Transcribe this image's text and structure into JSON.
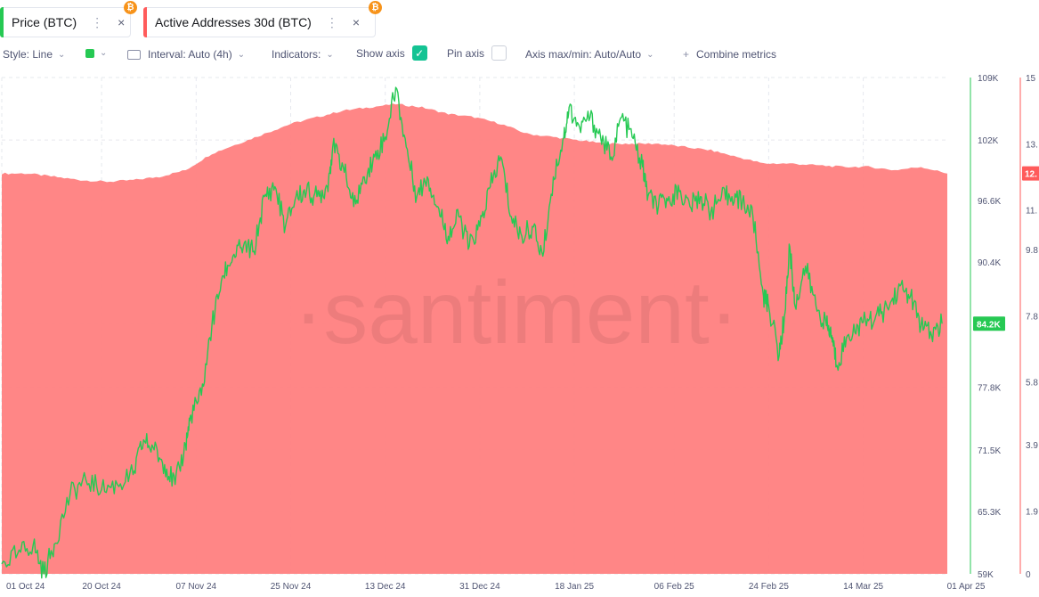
{
  "tabs": [
    {
      "label": "Price (BTC)",
      "dots": "⋮",
      "close": "×",
      "color": "#26c953",
      "badge": "₿",
      "badge_color": "#f7931a"
    },
    {
      "label": "Active Addresses 30d (BTC)",
      "dots": "⋮",
      "close": "×",
      "color": "#ff5b5b",
      "badge": "₿",
      "badge_color": "#f7931a"
    }
  ],
  "toolbar": {
    "style": "Style: Line",
    "color_swatch": "#26c953",
    "interval": "Interval: Auto (4h)",
    "indicators": "Indicators:",
    "show_axis": "Show axis",
    "show_axis_checked": true,
    "pin_axis": "Pin axis",
    "pin_axis_checked": false,
    "axis_maxmin": "Axis max/min: Auto/Auto",
    "combine": "Combine metrics",
    "combine_icon": "+",
    "checkbox_color": "#14c393"
  },
  "watermark": "·santiment·",
  "chart_data": {
    "type": "line",
    "x_ticks": [
      "01 Oct 24",
      "20 Oct 24",
      "07 Nov 24",
      "25 Nov 24",
      "13 Dec 24",
      "31 Dec 24",
      "18 Jan 25",
      "06 Feb 25",
      "24 Feb 25",
      "14 Mar 25",
      "01 Apr 25"
    ],
    "x_tick_days": [
      0,
      19,
      37,
      55,
      73,
      91,
      109,
      128,
      146,
      164,
      182
    ],
    "xlim_days": [
      0,
      180
    ],
    "y_left": {
      "ticks": [
        "109K",
        "102K",
        "96.6K",
        "90.4K",
        "84.2K",
        "77.8K",
        "71.5K",
        "65.3K",
        "59K"
      ],
      "values": [
        109000,
        102700,
        96600,
        90400,
        84200,
        77800,
        71500,
        65300,
        59000
      ],
      "ylim": [
        59000,
        109000
      ],
      "current_label": "84.2K",
      "color": "#26c953"
    },
    "y_right": {
      "ticks": [
        "15",
        "13.",
        "11.",
        "9.8",
        "7.8",
        "5.8",
        "3.9",
        "1.9",
        "0"
      ],
      "values": [
        15,
        13,
        11,
        9.8,
        7.8,
        5.8,
        3.9,
        1.9,
        0
      ],
      "ylim": [
        0,
        15
      ],
      "current_label": "12.",
      "color": "#ff5b5b"
    },
    "series": [
      {
        "name": "Price (BTC)",
        "axis": "left",
        "color": "#26c953",
        "points": [
          [
            0,
            60000
          ],
          [
            3,
            61000
          ],
          [
            6,
            62000
          ],
          [
            8,
            59000
          ],
          [
            10,
            62000
          ],
          [
            13,
            67000
          ],
          [
            16,
            68500
          ],
          [
            19,
            67500
          ],
          [
            22,
            68000
          ],
          [
            25,
            69000
          ],
          [
            27,
            72500
          ],
          [
            29,
            71500
          ],
          [
            31,
            70000
          ],
          [
            33,
            68000
          ],
          [
            35,
            72000
          ],
          [
            36,
            75000
          ],
          [
            38,
            77000
          ],
          [
            40,
            84000
          ],
          [
            42,
            89000
          ],
          [
            44,
            91000
          ],
          [
            46,
            92000
          ],
          [
            48,
            91500
          ],
          [
            50,
            97000
          ],
          [
            52,
            98000
          ],
          [
            54,
            94000
          ],
          [
            56,
            97000
          ],
          [
            58,
            97500
          ],
          [
            60,
            97000
          ],
          [
            62,
            98000
          ],
          [
            63,
            102000
          ],
          [
            65,
            100000
          ],
          [
            67,
            96000
          ],
          [
            69,
            99000
          ],
          [
            71,
            101000
          ],
          [
            73,
            103000
          ],
          [
            75,
            108000
          ],
          [
            77,
            102000
          ],
          [
            79,
            97000
          ],
          [
            81,
            99000
          ],
          [
            83,
            96000
          ],
          [
            85,
            93000
          ],
          [
            87,
            95000
          ],
          [
            89,
            92000
          ],
          [
            91,
            94000
          ],
          [
            93,
            98000
          ],
          [
            95,
            101000
          ],
          [
            97,
            95000
          ],
          [
            99,
            93000
          ],
          [
            101,
            94000
          ],
          [
            103,
            91000
          ],
          [
            105,
            99000
          ],
          [
            107,
            103000
          ],
          [
            108,
            106000
          ],
          [
            110,
            104000
          ],
          [
            112,
            105000
          ],
          [
            114,
            103000
          ],
          [
            116,
            101000
          ],
          [
            118,
            105000
          ],
          [
            120,
            103000
          ],
          [
            122,
            100000
          ],
          [
            123,
            97000
          ],
          [
            125,
            96000
          ],
          [
            127,
            97000
          ],
          [
            129,
            97500
          ],
          [
            131,
            96000
          ],
          [
            133,
            97000
          ],
          [
            135,
            95500
          ],
          [
            137,
            97000
          ],
          [
            139,
            97000
          ],
          [
            141,
            96500
          ],
          [
            143,
            95000
          ],
          [
            145,
            87000
          ],
          [
            146,
            86000
          ],
          [
            148,
            81000
          ],
          [
            149,
            85000
          ],
          [
            150,
            92000
          ],
          [
            151,
            86000
          ],
          [
            153,
            90000
          ],
          [
            155,
            86000
          ],
          [
            157,
            84000
          ],
          [
            158,
            83000
          ],
          [
            159,
            80000
          ],
          [
            161,
            83000
          ],
          [
            163,
            84000
          ],
          [
            165,
            84500
          ],
          [
            167,
            85000
          ],
          [
            169,
            86000
          ],
          [
            171,
            88000
          ],
          [
            173,
            87000
          ],
          [
            175,
            84000
          ],
          [
            177,
            83000
          ],
          [
            179,
            84200
          ]
        ]
      },
      {
        "name": "Active Addresses 30d (BTC)",
        "axis": "right",
        "color": "#ff5b5b",
        "points": [
          [
            0,
            12.1
          ],
          [
            5,
            12.1
          ],
          [
            10,
            12.0
          ],
          [
            15,
            11.9
          ],
          [
            20,
            11.85
          ],
          [
            25,
            11.9
          ],
          [
            30,
            12.0
          ],
          [
            35,
            12.2
          ],
          [
            40,
            12.7
          ],
          [
            45,
            13.0
          ],
          [
            50,
            13.3
          ],
          [
            55,
            13.6
          ],
          [
            60,
            13.8
          ],
          [
            65,
            14.0
          ],
          [
            70,
            14.1
          ],
          [
            75,
            14.2
          ],
          [
            80,
            14.1
          ],
          [
            85,
            13.9
          ],
          [
            90,
            13.8
          ],
          [
            95,
            13.6
          ],
          [
            100,
            13.3
          ],
          [
            105,
            13.2
          ],
          [
            110,
            13.1
          ],
          [
            115,
            13.0
          ],
          [
            120,
            13.0
          ],
          [
            125,
            13.0
          ],
          [
            130,
            12.9
          ],
          [
            135,
            12.8
          ],
          [
            140,
            12.6
          ],
          [
            145,
            12.4
          ],
          [
            150,
            12.4
          ],
          [
            155,
            12.35
          ],
          [
            160,
            12.3
          ],
          [
            165,
            12.3
          ],
          [
            170,
            12.2
          ],
          [
            175,
            12.3
          ],
          [
            180,
            12.1
          ]
        ]
      }
    ],
    "grid": true
  }
}
